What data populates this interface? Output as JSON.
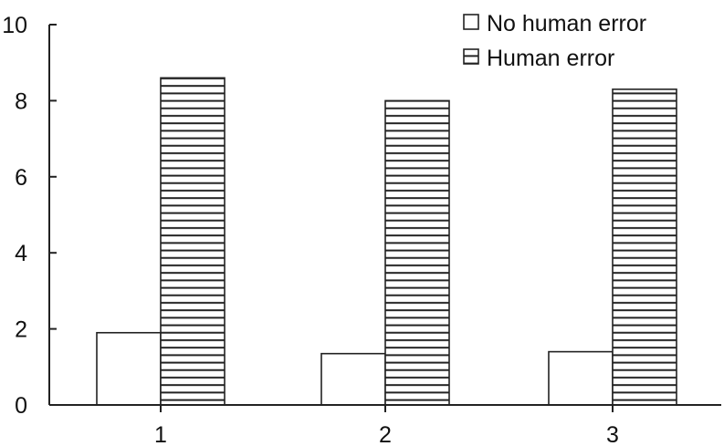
{
  "chart_data": {
    "type": "bar",
    "categories": [
      "1",
      "2",
      "3"
    ],
    "series": [
      {
        "name": "No human error",
        "values": [
          1.9,
          1.35,
          1.4
        ],
        "pattern": "none"
      },
      {
        "name": "Human error",
        "values": [
          8.6,
          8.0,
          8.3
        ],
        "pattern": "horizontal-lines"
      }
    ],
    "ylim": [
      0,
      10
    ],
    "yticks": [
      0,
      2,
      4,
      6,
      8,
      10
    ],
    "title": "",
    "xlabel": "",
    "ylabel": "",
    "grid": false,
    "legend_position": "top-right",
    "colors": {
      "stroke": "#222222",
      "fill": "#ffffff"
    }
  }
}
